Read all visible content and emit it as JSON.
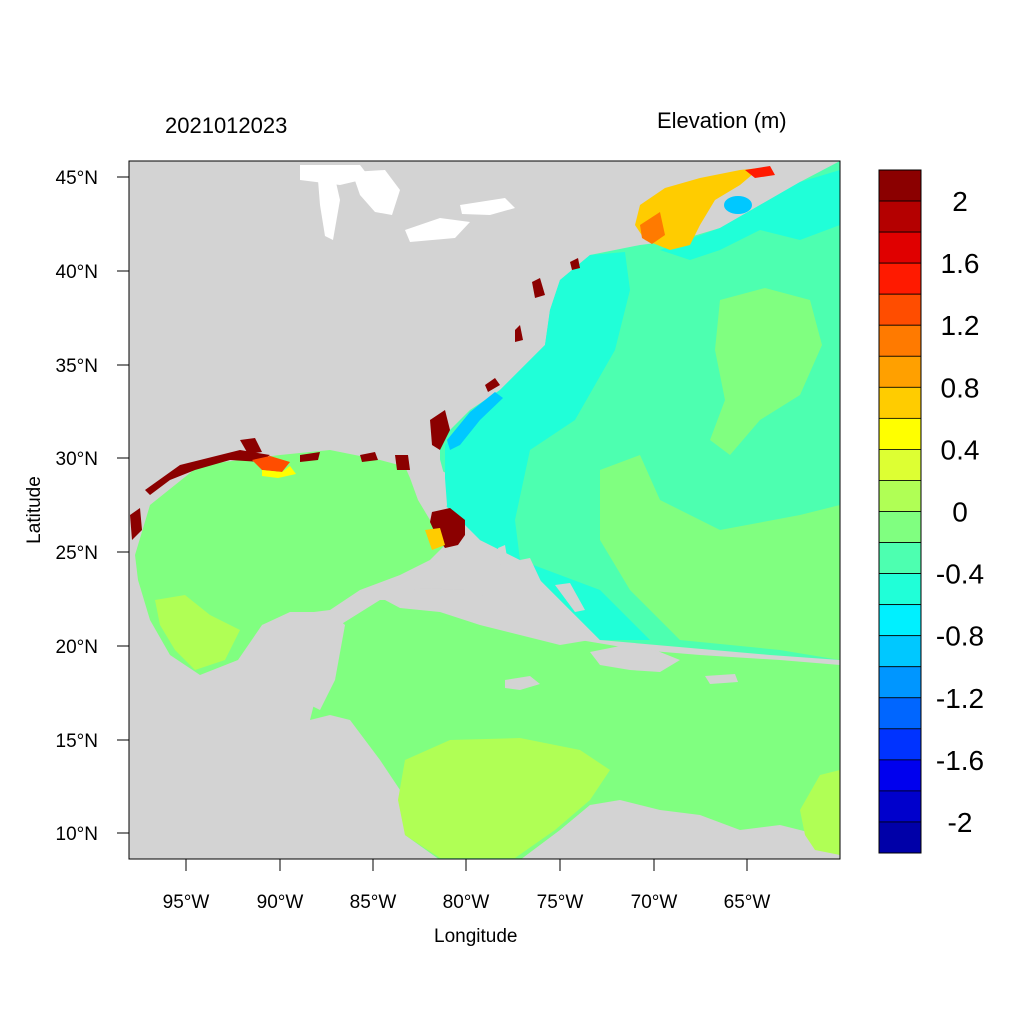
{
  "title_left": "2021012023",
  "title_right": "Elevation (m)",
  "x_axis_label": "Longitude",
  "y_axis_label": "Latitude",
  "lat_ticks": [
    "45°N",
    "40°N",
    "35°N",
    "30°N",
    "25°N",
    "20°N",
    "15°N",
    "10°N"
  ],
  "lon_ticks": [
    "95°W",
    "90°W",
    "85°W",
    "80°W",
    "75°W",
    "70°W",
    "65°W"
  ],
  "colorbar": {
    "labels": [
      "2",
      "1.6",
      "1.2",
      "0.8",
      "0.4",
      "0",
      "-0.4",
      "-0.8",
      "-1.2",
      "-1.6",
      "-2"
    ],
    "colors_top_to_bottom": [
      "#8b0000",
      "#b40000",
      "#e00000",
      "#ff1a00",
      "#ff4d00",
      "#ff7a00",
      "#ffa000",
      "#ffcc00",
      "#ffff00",
      "#ddff33",
      "#b0ff55",
      "#80ff80",
      "#4dffb0",
      "#20ffd8",
      "#00f0ff",
      "#00c8ff",
      "#0096ff",
      "#0066ff",
      "#0033ff",
      "#0000ee",
      "#0000cc",
      "#0000a8"
    ]
  },
  "colors": {
    "land": "#d3d3d3",
    "sea_mean": "#80ff80",
    "open_atlantic": "#4dffb0",
    "shelf_low": "#20ffd8",
    "surge_high": "#8b0000"
  }
}
